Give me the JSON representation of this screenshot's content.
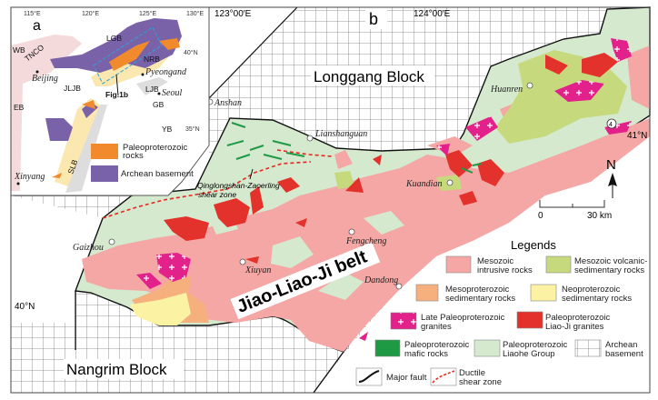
{
  "colors": {
    "liaohe_group": "#d5e9cf",
    "mesozoic_intrusive": "#f4a7a4",
    "mesozoic_volcanic": "#c6d97c",
    "mesoproterozoic_sed": "#f6b07e",
    "neoproterozoic_sed": "#fbf2a3",
    "late_paleo_granites": "#e3218b",
    "liaoji_granites": "#e2322b",
    "mafic_rocks": "#1e9a45",
    "paleoproterozoic_rocks_inset": "#f08a2c",
    "archean_inset": "#7a62a8",
    "shear_zone": "#e8271f"
  },
  "inset": {
    "panel_label": "a",
    "longitudes": [
      "115°E",
      "120°E",
      "125°E",
      "130°E"
    ],
    "latitudes": [
      "40°N",
      "35°N"
    ],
    "units": [
      "WB",
      "TNCO",
      "LGB",
      "NRB",
      "JLJB",
      "LJB",
      "EB",
      "GB",
      "YB",
      "SLB"
    ],
    "cities": [
      "Beijing",
      "Pyeongand",
      "Seoul",
      "Xinyang"
    ],
    "figure_ref": "Fig.1b",
    "legend": [
      {
        "label": "Paleoproterozoic rocks",
        "line1": "Paleoproterozoic",
        "line2": "rocks"
      },
      {
        "label": "Archean basement"
      }
    ]
  },
  "main": {
    "panel_label": "b",
    "longitudes": [
      "123°00′E",
      "124°00′E"
    ],
    "latitudes": [
      "41°N",
      "40°N"
    ],
    "blocks": [
      "Longgang Block",
      "Nangrim Block"
    ],
    "belt_name": "Jiao-Liao-Ji belt",
    "shear_zone_label": [
      "Qinglongshan-Zaoerling",
      "shear zone"
    ],
    "cities": [
      "Anshan",
      "Lianshanguan",
      "Huanren",
      "Kuandian",
      "Gaizhou",
      "Xiuyan",
      "Fengcheng",
      "Dandong"
    ],
    "site_marker": "4",
    "north_label": "N",
    "scale": {
      "start": "0",
      "end": "30 km"
    }
  },
  "legend": {
    "title": "Legends",
    "items": [
      {
        "line1": "Mesozoic",
        "line2": "intrusive rocks"
      },
      {
        "line1": "Mesozoic volcanic-",
        "line2": "sedimentary rocks"
      },
      {
        "line1": "Mesoproterozoic",
        "line2": "sedimentary rocks"
      },
      {
        "line1": "Neoproterozoic",
        "line2": "sedimentary rocks"
      },
      {
        "line1": "Late Paleoproterozoic",
        "line2": "granites"
      },
      {
        "line1": "Paleoproterozoic",
        "line2": "Liao-Ji granites"
      },
      {
        "line1": "Paleoproterozoic",
        "line2": "mafic rocks"
      },
      {
        "line1": "Paleoproterozoic",
        "line2": "Liaohe Group"
      },
      {
        "line1": "Archean",
        "line2": "basement"
      },
      {
        "line1": "Major fault"
      },
      {
        "line1": "Ductile",
        "line2": "shear zone"
      }
    ]
  }
}
